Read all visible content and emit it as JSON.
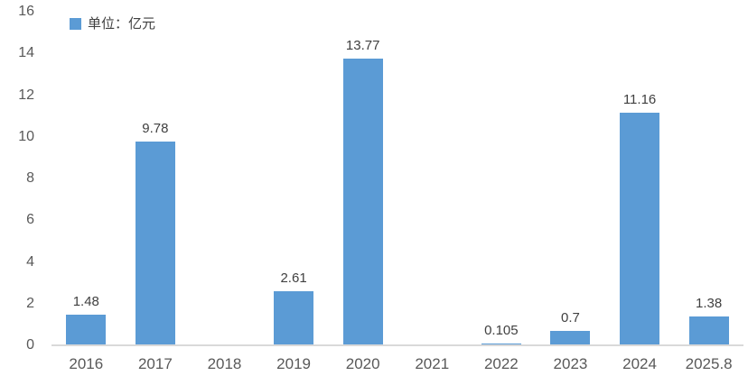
{
  "chart_data": {
    "type": "bar",
    "title": "",
    "legend": "单位：亿元",
    "categories": [
      "2016",
      "2017",
      "2018",
      "2019",
      "2020",
      "2021",
      "2022",
      "2023",
      "2024",
      "2025.8"
    ],
    "values": [
      1.48,
      9.78,
      0,
      2.61,
      13.77,
      0,
      0.105,
      0.7,
      11.16,
      1.38
    ],
    "value_labels": [
      "1.48",
      "9.78",
      "",
      "2.61",
      "13.77",
      "",
      "0.105",
      "0.7",
      "11.16",
      "1.38"
    ],
    "xlabel": "",
    "ylabel": "",
    "ylim": [
      0,
      16
    ],
    "ytick_step": 2,
    "grid": false,
    "legend_position": "top-left",
    "bar_color": "#5B9BD5",
    "axis_line_color": "#d9d9d9",
    "tick_text_color": "#595959",
    "value_text_color": "#404040"
  }
}
